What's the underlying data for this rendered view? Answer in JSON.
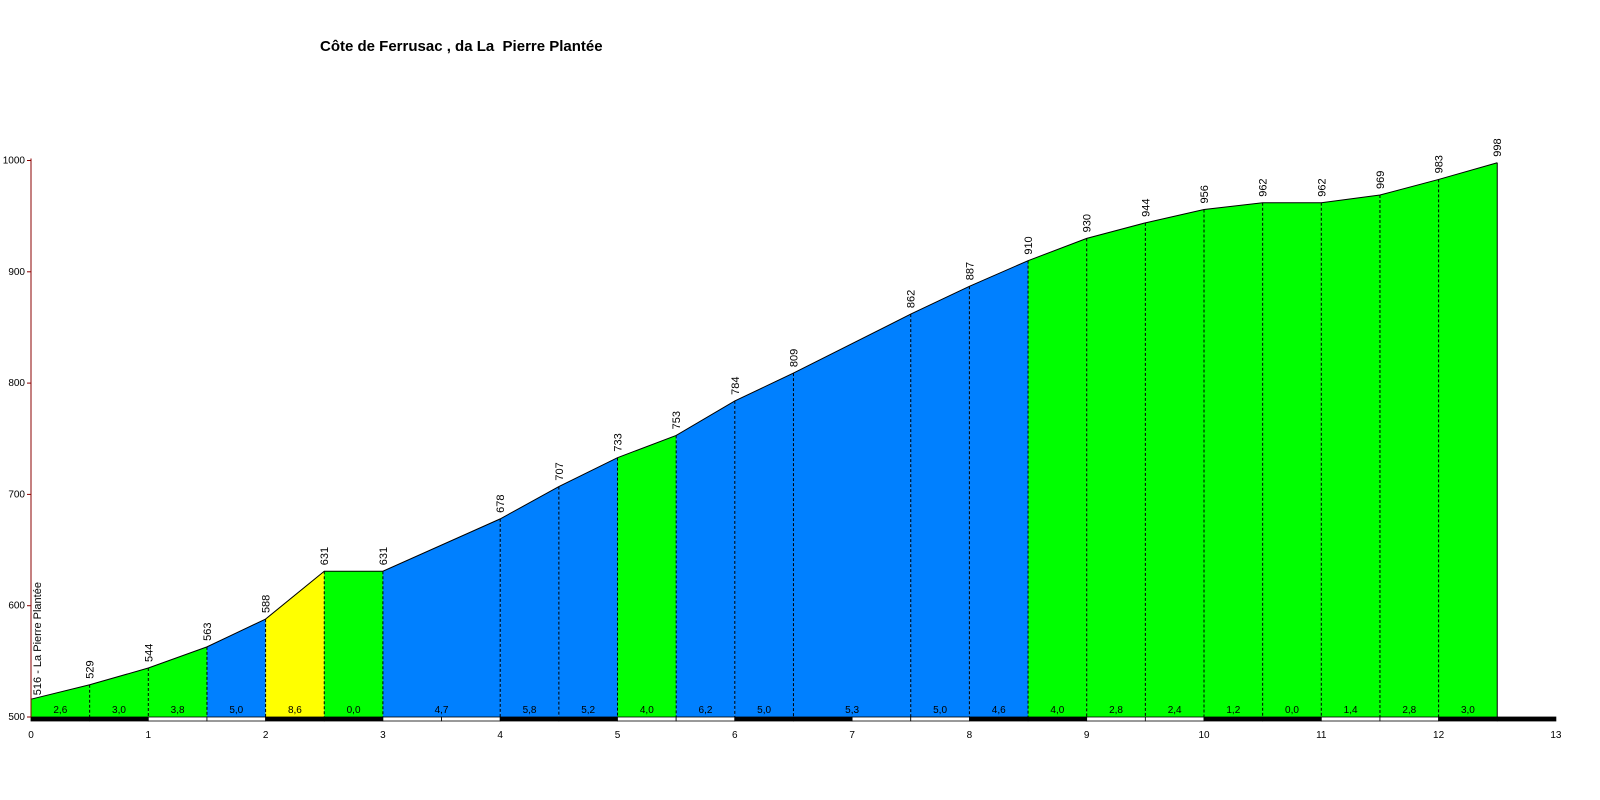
{
  "chart_data": {
    "type": "area",
    "title": "Côte de Ferrusac , da La  Pierre Plantée",
    "xlabel": "",
    "ylabel": "",
    "xlim": [
      0,
      13
    ],
    "ylim": [
      500,
      1000
    ],
    "x_ticks": [
      "0",
      "1",
      "2",
      "3",
      "4",
      "5",
      "6",
      "7",
      "8",
      "9",
      "10",
      "11",
      "12",
      "13"
    ],
    "y_ticks": [
      "500",
      "600",
      "700",
      "800",
      "900",
      "1000"
    ],
    "start_label": "516 - La Pierre Plantée",
    "x": [
      0,
      0.5,
      1,
      1.5,
      2,
      2.5,
      3,
      4,
      4.5,
      5,
      5.5,
      6,
      6.5,
      7.5,
      8,
      8.5,
      9,
      9.5,
      10,
      10.5,
      11,
      11.5,
      12,
      12.5
    ],
    "elevation": [
      516,
      529,
      544,
      563,
      588,
      631,
      631,
      678,
      707,
      733,
      753,
      784,
      809,
      862,
      887,
      910,
      930,
      944,
      956,
      962,
      962,
      969,
      983,
      998
    ],
    "elevation_labels": [
      "529",
      "544",
      "563",
      "588",
      "631",
      "631",
      "678",
      "707",
      "733",
      "753",
      "784",
      "809",
      "862",
      "887",
      "910",
      "930",
      "944",
      "956",
      "962",
      "962",
      "969",
      "983",
      "998"
    ],
    "gradients": [
      "2,6",
      "3,0",
      "3,8",
      "5,0",
      "8,6",
      "0,0",
      "4,7",
      "5,8",
      "5,2",
      "4,0",
      "6,2",
      "5,0",
      "5,3",
      "5,0",
      "4,6",
      "4,0",
      "2,8",
      "2,4",
      "1,2",
      "0,0",
      "1,4",
      "2,8",
      "3,0"
    ],
    "segment_colors": [
      "green",
      "green",
      "green",
      "blue",
      "yellow",
      "green",
      "blue",
      "blue",
      "blue",
      "green",
      "blue",
      "blue",
      "blue",
      "blue",
      "blue",
      "green",
      "green",
      "green",
      "green",
      "green",
      "green",
      "green",
      "green"
    ],
    "colors": {
      "green": "#00ff00",
      "blue": "#0080ff",
      "yellow": "#ffff00",
      "axis": "#8b0000",
      "line": "#000000"
    },
    "grid": false
  }
}
